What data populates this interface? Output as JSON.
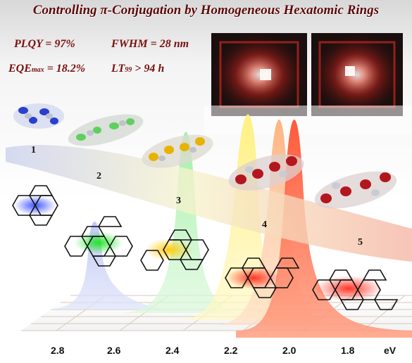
{
  "title": "Controlling π-Conjugation by Homogeneous Hexatomic Rings",
  "metrics": {
    "plqy": "PLQY  =  97%",
    "fwhm": "FWHM = 28 nm",
    "eqe_main": "EQE",
    "eqe_sub": "max",
    "eqe_value": " = 18.2%",
    "lt_main": "LT",
    "lt_sub": "99",
    "lt_value": " > 94 h"
  },
  "molecule_labels": [
    "1",
    "2",
    "3",
    "4",
    "5"
  ],
  "axis": {
    "ticks": [
      "2.8",
      "2.6",
      "2.4",
      "2.2",
      "2.0",
      "1.8"
    ],
    "unit": "eV"
  },
  "colors": {
    "m1": "#1f3fd6",
    "m2": "#21d42a",
    "m3": "#f2b800",
    "m4": "#ff3a1a",
    "m5": "#ff1e1e",
    "title": "#5b0808"
  }
}
